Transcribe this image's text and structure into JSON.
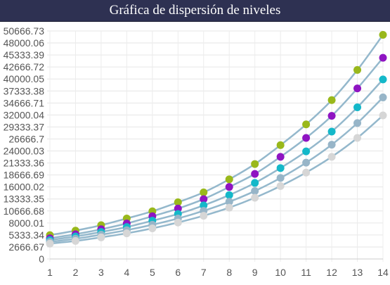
{
  "chart_data": {
    "type": "scatter",
    "title": "Gráfica de dispersión de niveles",
    "xlabel": "",
    "ylabel": "",
    "x": [
      1,
      2,
      3,
      4,
      5,
      6,
      7,
      8,
      9,
      10,
      11,
      12,
      13,
      14
    ],
    "xlim": [
      1,
      14
    ],
    "ylim": [
      0,
      50666.73
    ],
    "y_ticks": [
      "0",
      "2666.67",
      "5333.34",
      "8000.01",
      "10666.68",
      "13333.35",
      "16000.02",
      "18666.69",
      "21333.36",
      "24000.03",
      "26666.7",
      "29333.37",
      "32000.04",
      "34666.71",
      "37333.38",
      "40000.05",
      "42666.72",
      "45333.39",
      "48000.06",
      "50666.73"
    ],
    "x_ticks": [
      "1",
      "2",
      "3",
      "4",
      "5",
      "6",
      "7",
      "8",
      "9",
      "10",
      "11",
      "12",
      "13",
      "14"
    ],
    "grid": true,
    "line_color": "#94b8cc",
    "series": [
      {
        "color": "#99b81b",
        "values": [
          5300,
          6300,
          7500,
          9000,
          10600,
          12600,
          14800,
          17700,
          21100,
          25300,
          29900,
          35300,
          42000,
          49800
        ]
      },
      {
        "color": "#8f14c2",
        "values": [
          4600,
          5500,
          6600,
          7900,
          9500,
          11200,
          13300,
          16000,
          18900,
          22700,
          26900,
          31800,
          37900,
          44700
        ]
      },
      {
        "color": "#14b8c9",
        "values": [
          4200,
          5000,
          6000,
          7100,
          8500,
          10000,
          11900,
          14200,
          16900,
          20200,
          23900,
          28300,
          33700,
          39900
        ]
      },
      {
        "color": "#97b5c8",
        "values": [
          3800,
          4500,
          5400,
          6400,
          7600,
          9000,
          10700,
          12700,
          15100,
          18000,
          21400,
          25400,
          30200,
          35900
        ]
      },
      {
        "color": "#d6d6d6",
        "values": [
          3400,
          4000,
          4800,
          5700,
          6800,
          8100,
          9600,
          11400,
          13600,
          16200,
          19200,
          22700,
          26900,
          31900
        ]
      }
    ]
  }
}
